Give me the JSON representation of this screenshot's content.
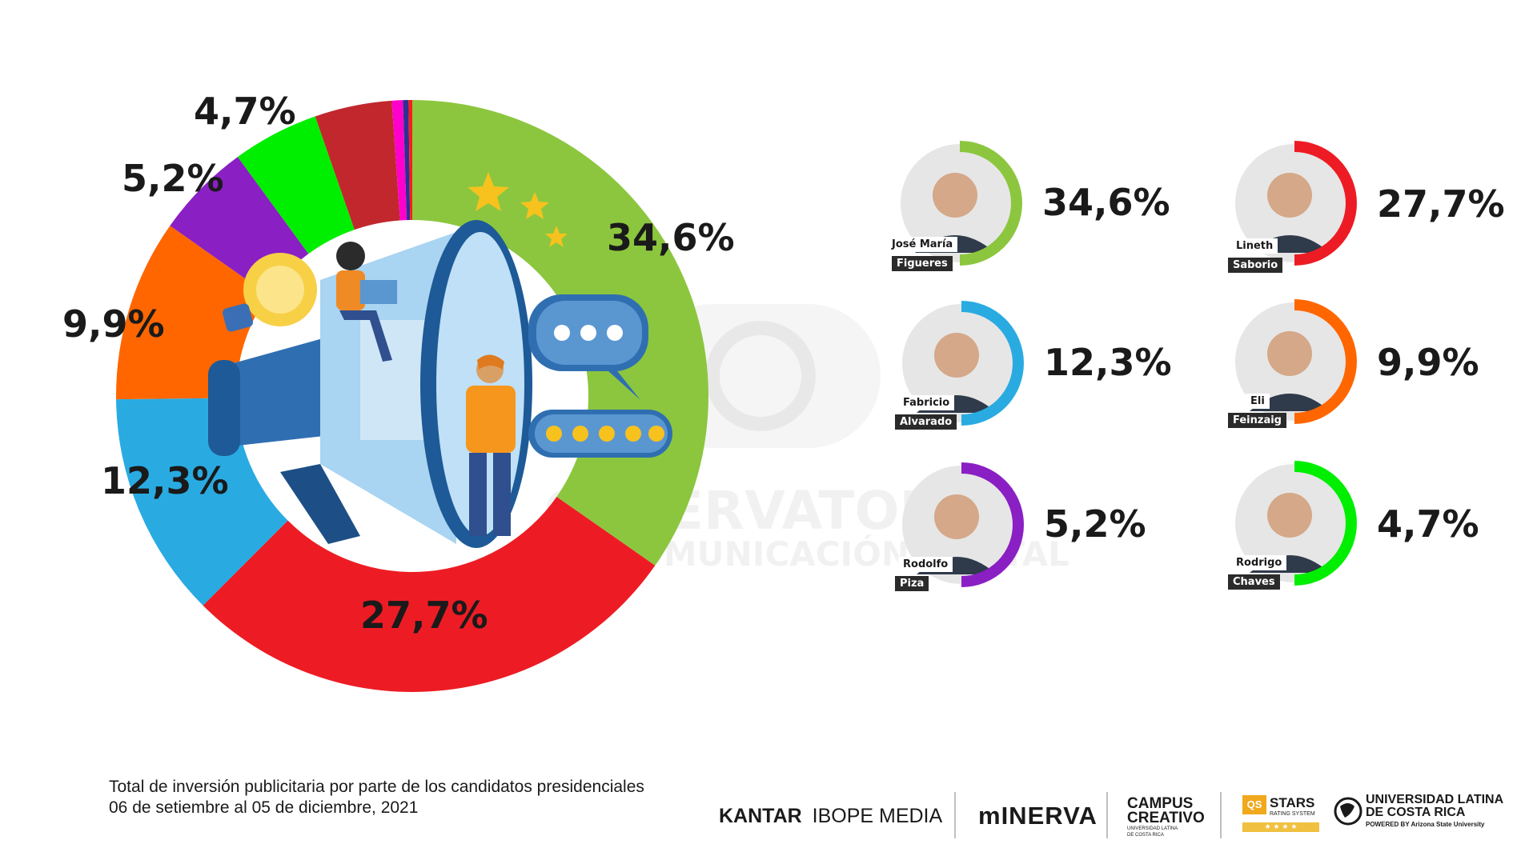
{
  "chart_data": {
    "type": "pie",
    "slices": [
      {
        "label": "34,6%",
        "value": 34.6,
        "color": "#8cc63f"
      },
      {
        "label": "27,7%",
        "value": 27.7,
        "color": "#ed1c24"
      },
      {
        "label": "12,3%",
        "value": 12.3,
        "color": "#29abe2"
      },
      {
        "label": "9,9%",
        "value": 9.9,
        "color": "#ff6600"
      },
      {
        "label": "5,2%",
        "value": 5.2,
        "color": "#8a1fc4"
      },
      {
        "label": "4,7%",
        "value": 4.7,
        "color": "#00ee00"
      },
      {
        "label": "",
        "value": 4.2,
        "color": "#c1272d"
      },
      {
        "label": "",
        "value": 0.6,
        "color": "#ff00cc"
      },
      {
        "label": "",
        "value": 0.3,
        "color": "#2e3192"
      },
      {
        "label": "",
        "value": 0.2,
        "color": "#ff1a1a"
      }
    ]
  },
  "candidates": [
    {
      "first": "José María",
      "last": "Figueres",
      "pct": "34,6%",
      "value": 34.6,
      "color": "#8cc63f"
    },
    {
      "first": "Lineth",
      "last": "Saborio",
      "pct": "27,7%",
      "value": 27.7,
      "color": "#ed1c24"
    },
    {
      "first": "Fabricio",
      "last": "Alvarado",
      "pct": "12,3%",
      "value": 12.3,
      "color": "#29abe2"
    },
    {
      "first": "Eli",
      "last": "Feinzaig",
      "pct": "9,9%",
      "value": 9.9,
      "color": "#ff6600"
    },
    {
      "first": "Rodolfo",
      "last": "Piza",
      "pct": "5,2%",
      "value": 5.2,
      "color": "#8a1fc4"
    },
    {
      "first": "Rodrigo",
      "last": "Chaves",
      "pct": "4,7%",
      "value": 4.7,
      "color": "#00ee00"
    }
  ],
  "watermark": {
    "line1": "OBSERVATORIO",
    "line2": "DE COMUNICACIÓN DIGITAL"
  },
  "caption": {
    "line1": "Total de inversión publicitaria por parte de los candidatos presidenciales",
    "line2": "06 de setiembre al 05 de diciembre, 2021"
  },
  "logos": {
    "kantar": "KANTAR",
    "ibope": "IBOPE MEDIA",
    "minerva": "mINERVA",
    "campus1": "CAMPUS",
    "campus2": "CREATIVO",
    "campus3": "UNIVERSIDAD LATINA DE COSTA RICA",
    "qs": "QS",
    "stars": "STARS",
    "stars_sub": "RATING SYSTEM",
    "ulatina1": "UNIVERSIDAD LATINA",
    "ulatina2": "DE COSTA RICA",
    "ulatina3": "POWERED BY Arizona State University"
  }
}
